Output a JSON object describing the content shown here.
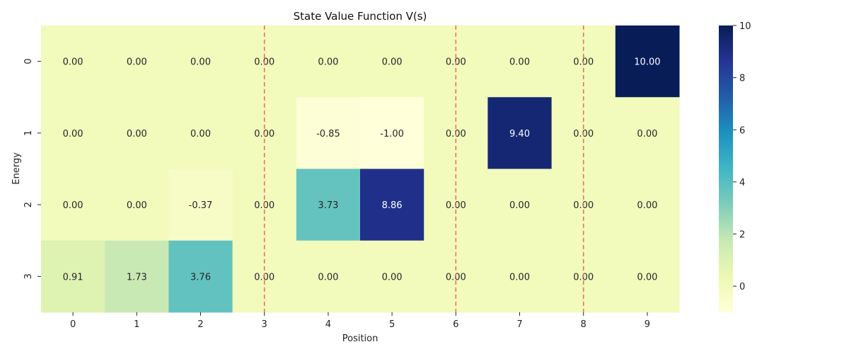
{
  "chart_data": {
    "type": "heatmap",
    "title": "State Value Function V(s)",
    "xlabel": "Position",
    "ylabel": "Energy",
    "x_categories": [
      "0",
      "1",
      "2",
      "3",
      "4",
      "5",
      "6",
      "7",
      "8",
      "9"
    ],
    "y_categories": [
      "0",
      "1",
      "2",
      "3"
    ],
    "values": [
      [
        0.0,
        0.0,
        0.0,
        0.0,
        0.0,
        0.0,
        0.0,
        0.0,
        0.0,
        10.0
      ],
      [
        0.0,
        0.0,
        0.0,
        0.0,
        -0.85,
        -1.0,
        0.0,
        9.4,
        0.0,
        0.0
      ],
      [
        0.0,
        0.0,
        -0.37,
        0.0,
        3.73,
        8.86,
        0.0,
        0.0,
        0.0,
        0.0
      ],
      [
        0.91,
        1.73,
        3.76,
        0.0,
        0.0,
        0.0,
        0.0,
        0.0,
        0.0,
        0.0
      ]
    ],
    "value_range": [
      -1,
      10
    ],
    "colormap": "YlGnBu",
    "colorbar_ticks": [
      "0",
      "2",
      "4",
      "6",
      "8",
      "10"
    ],
    "reference_lines": {
      "orientation": "vertical",
      "x_positions": [
        3,
        6,
        8
      ],
      "style": "dashed",
      "color": "#f07060"
    },
    "annotation_format": "0.00",
    "grid": false
  }
}
